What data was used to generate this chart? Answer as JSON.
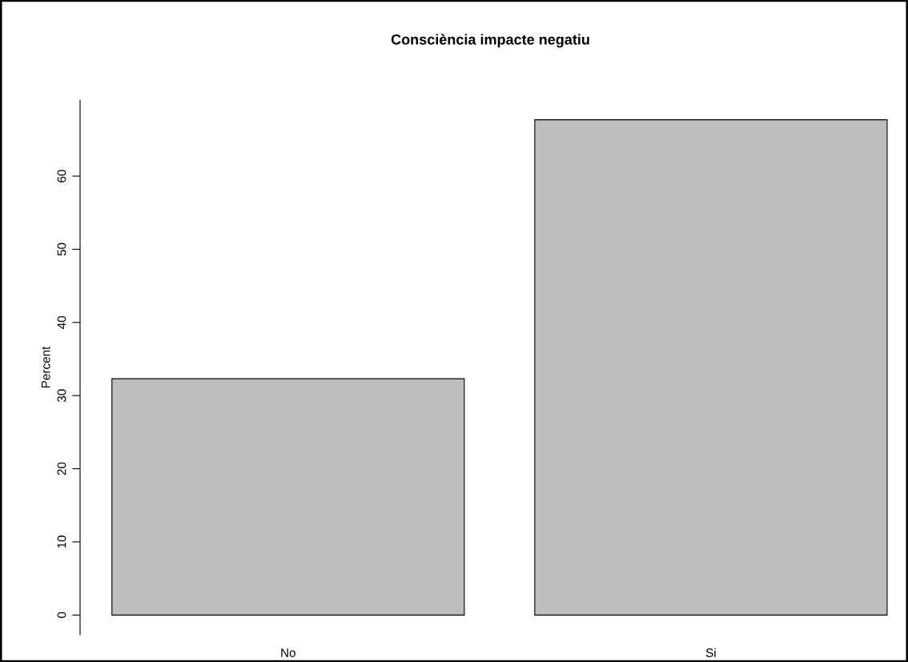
{
  "chart_data": {
    "type": "bar",
    "title": "Consciència impacte negatiu",
    "ylabel": "Percent",
    "categories": [
      "No",
      "Si"
    ],
    "values": [
      32.3,
      67.7
    ],
    "color": "#bebebe",
    "ylim": [
      -2.7,
      70.4
    ],
    "yticks": [
      0,
      10,
      20,
      30,
      40,
      50,
      60
    ],
    "grid": false
  }
}
